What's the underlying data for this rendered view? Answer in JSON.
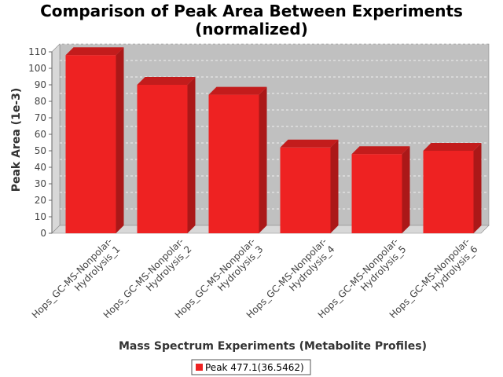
{
  "chart_data": {
    "type": "bar",
    "title": [
      "Comparison of Peak Area Between Experiments",
      "(normalized)"
    ],
    "xlabel": "Mass Spectrum Experiments (Metabolite Profiles)",
    "ylabel": "Peak Area (1e-3)",
    "ylim": [
      0,
      110
    ],
    "yticks": [
      0,
      10,
      20,
      30,
      40,
      50,
      60,
      70,
      80,
      90,
      100,
      110
    ],
    "categories": [
      [
        "Hops_GC-MS-Nonpolar-",
        "Hydrolysis_1"
      ],
      [
        "Hops_GC-MS-Nonpolar-",
        "Hydrolysis_2"
      ],
      [
        "Hops_GC-MS-Nonpolar-",
        "Hydrolysis_3"
      ],
      [
        "Hops_GC-MS-Nonpolar-",
        "Hydrolysis_4"
      ],
      [
        "Hops_GC-MS-Nonpolar-",
        "Hydrolysis_5"
      ],
      [
        "Hops_GC-MS-Nonpolar-",
        "Hydrolysis_6"
      ]
    ],
    "series": [
      {
        "name": "Peak 477.1(36.5462)",
        "color": "#ee2222",
        "values": [
          108,
          90,
          84,
          52,
          48,
          50
        ]
      }
    ],
    "grid": true,
    "legend": "bottom-center",
    "style": "3d"
  }
}
